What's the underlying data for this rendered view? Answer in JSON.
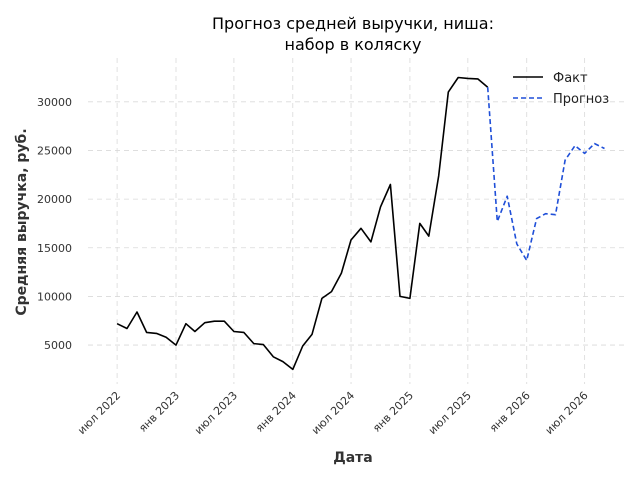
{
  "chart_data": {
    "type": "line",
    "title_lines": [
      "Прогноз средней выручки, ниша:",
      "набор в коляску"
    ],
    "xlabel": "Дата",
    "ylabel": "Средняя выручка, руб.",
    "xlim": [
      "2022-04-01",
      "2026-11-01"
    ],
    "ylim": [
      1000,
      34500
    ],
    "y_ticks": [
      5000,
      10000,
      15000,
      20000,
      25000,
      30000
    ],
    "x_ticks": [
      {
        "date": "2022-07-01",
        "label": "июл 2022"
      },
      {
        "date": "2023-01-01",
        "label": "янв 2023"
      },
      {
        "date": "2023-07-01",
        "label": "июл 2023"
      },
      {
        "date": "2024-01-01",
        "label": "янв 2024"
      },
      {
        "date": "2024-07-01",
        "label": "июл 2024"
      },
      {
        "date": "2025-01-01",
        "label": "янв 2025"
      },
      {
        "date": "2025-07-01",
        "label": "июл 2025"
      },
      {
        "date": "2026-01-01",
        "label": "янв 2026"
      },
      {
        "date": "2026-07-01",
        "label": "июл 2026"
      }
    ],
    "grid": true,
    "legend_position": "top-right",
    "series": [
      {
        "name": "Факт",
        "color": "#000000",
        "style": "solid",
        "points": [
          [
            "2022-07-01",
            7200
          ],
          [
            "2022-08-01",
            6700
          ],
          [
            "2022-09-01",
            8400
          ],
          [
            "2022-10-01",
            6300
          ],
          [
            "2022-11-01",
            6200
          ],
          [
            "2022-12-01",
            5800
          ],
          [
            "2023-01-01",
            5000
          ],
          [
            "2023-02-01",
            7200
          ],
          [
            "2023-03-01",
            6400
          ],
          [
            "2023-04-01",
            7300
          ],
          [
            "2023-05-01",
            7450
          ],
          [
            "2023-06-01",
            7450
          ],
          [
            "2023-07-01",
            6400
          ],
          [
            "2023-08-01",
            6300
          ],
          [
            "2023-09-01",
            5150
          ],
          [
            "2023-10-01",
            5050
          ],
          [
            "2023-11-01",
            3800
          ],
          [
            "2023-12-01",
            3300
          ],
          [
            "2024-01-01",
            2500
          ],
          [
            "2024-02-01",
            4900
          ],
          [
            "2024-03-01",
            6100
          ],
          [
            "2024-04-01",
            9800
          ],
          [
            "2024-05-01",
            10500
          ],
          [
            "2024-06-01",
            12400
          ],
          [
            "2024-07-01",
            15800
          ],
          [
            "2024-08-01",
            17000
          ],
          [
            "2024-09-01",
            15600
          ],
          [
            "2024-10-01",
            19200
          ],
          [
            "2024-11-01",
            21500
          ],
          [
            "2024-12-01",
            10000
          ],
          [
            "2025-01-01",
            9800
          ],
          [
            "2025-02-01",
            17500
          ],
          [
            "2025-03-01",
            16200
          ],
          [
            "2025-04-01",
            22400
          ],
          [
            "2025-05-01",
            31000
          ],
          [
            "2025-06-01",
            32500
          ],
          [
            "2025-07-01",
            32400
          ],
          [
            "2025-08-01",
            32350
          ],
          [
            "2025-09-01",
            31500
          ]
        ]
      },
      {
        "name": "Прогноз",
        "color": "#1f4fd8",
        "style": "dashed",
        "points": [
          [
            "2025-09-01",
            31500
          ],
          [
            "2025-10-01",
            17700
          ],
          [
            "2025-11-01",
            20300
          ],
          [
            "2025-12-01",
            15400
          ],
          [
            "2026-01-01",
            13700
          ],
          [
            "2026-02-01",
            18000
          ],
          [
            "2026-03-01",
            18500
          ],
          [
            "2026-04-01",
            18400
          ],
          [
            "2026-05-01",
            24000
          ],
          [
            "2026-06-01",
            25500
          ],
          [
            "2026-07-01",
            24700
          ],
          [
            "2026-08-01",
            25700
          ],
          [
            "2026-09-01",
            25200
          ]
        ]
      }
    ]
  }
}
